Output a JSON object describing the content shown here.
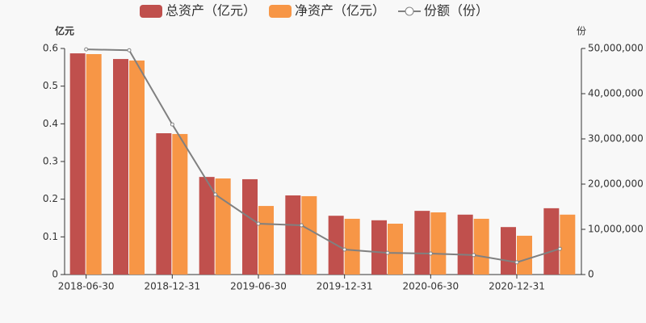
{
  "chart_data": {
    "type": "bar-line",
    "y_unit": "亿元",
    "y2_unit": "份",
    "categories": [
      "2018-06-30",
      null,
      "2018-12-31",
      null,
      "2019-06-30",
      null,
      "2019-12-31",
      null,
      "2020-06-30",
      null,
      "2020-12-31",
      null
    ],
    "series": [
      {
        "name": "总资产（亿元）",
        "type": "bar",
        "color": "#c0504d",
        "values": [
          0.587,
          0.572,
          0.375,
          0.259,
          0.253,
          0.21,
          0.156,
          0.144,
          0.169,
          0.159,
          0.126,
          0.176
        ]
      },
      {
        "name": "净资产（亿元）",
        "type": "bar",
        "color": "#f79646",
        "values": [
          0.585,
          0.568,
          0.373,
          0.255,
          0.182,
          0.208,
          0.148,
          0.135,
          0.165,
          0.148,
          0.103,
          0.159
        ]
      },
      {
        "name": "份额（份）",
        "type": "line",
        "axis": "y2",
        "color": "#808080",
        "values": [
          49800000,
          49600000,
          33200000,
          17700000,
          11250000,
          10900000,
          5540000,
          4800000,
          4640000,
          4300000,
          2700000,
          5700000
        ]
      }
    ],
    "ylim": [
      0,
      0.6
    ],
    "yticks": [
      0,
      0.1,
      0.2,
      0.3,
      0.4,
      0.5,
      0.6
    ],
    "y2lim": [
      0,
      50000000
    ],
    "y2ticks": [
      0,
      {
        "value": 10000000,
        "label": "10,000,000"
      },
      {
        "value": 20000000,
        "label": "20,000,000"
      },
      {
        "value": 30000000,
        "label": "30,000,000"
      },
      {
        "value": 40000000,
        "label": "40,000,000"
      },
      {
        "value": 50000000,
        "label": "50,000,000"
      }
    ],
    "legend": "top",
    "grid": false
  }
}
